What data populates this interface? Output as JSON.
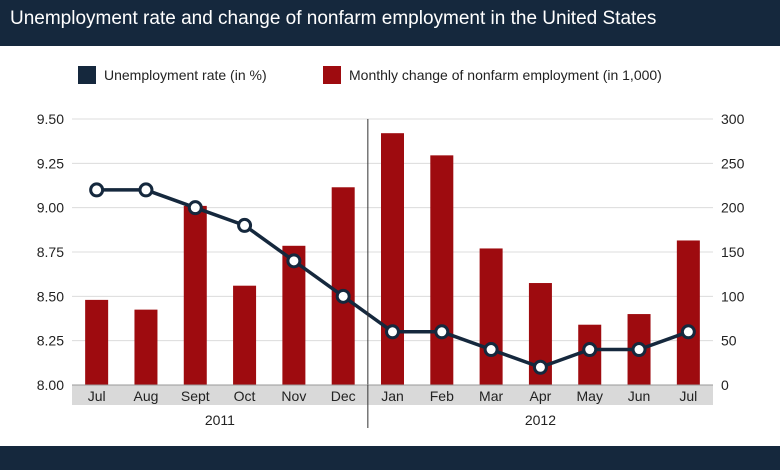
{
  "header": {
    "title": "Unemployment rate and change of nonfarm employment in the United States"
  },
  "legend": {
    "items": [
      {
        "label": "Unemployment rate (in %)",
        "color": "#15283d"
      },
      {
        "label": "Monthly change of nonfarm employment (in 1,000)",
        "color": "#9e0b0f"
      }
    ]
  },
  "chart_data": {
    "type": "bar",
    "categories": [
      "Jul",
      "Aug",
      "Sept",
      "Oct",
      "Nov",
      "Dec",
      "Jan",
      "Feb",
      "Mar",
      "Apr",
      "May",
      "Jun",
      "Jul"
    ],
    "groups": [
      {
        "label": "2011",
        "from": 0,
        "to": 5
      },
      {
        "label": "2012",
        "from": 6,
        "to": 12
      }
    ],
    "series": [
      {
        "name": "Monthly change of nonfarm employment (in 1,000)",
        "type": "bar",
        "axis": "right",
        "color": "#9e0b0f",
        "values": [
          96,
          85,
          202,
          112,
          157,
          223,
          284,
          259,
          154,
          115,
          68,
          80,
          163
        ]
      },
      {
        "name": "Unemployment rate (in %)",
        "type": "line",
        "axis": "left",
        "color": "#15283d",
        "values": [
          9.1,
          9.1,
          9.0,
          8.9,
          8.7,
          8.5,
          8.3,
          8.3,
          8.2,
          8.1,
          8.2,
          8.2,
          8.3
        ]
      }
    ],
    "y_left": {
      "min": 8.0,
      "max": 9.5,
      "ticks": [
        "8.00",
        "8.25",
        "8.50",
        "8.75",
        "9.00",
        "9.25",
        "9.50"
      ]
    },
    "y_right": {
      "min": 0,
      "max": 300,
      "ticks": [
        "0",
        "50",
        "100",
        "150",
        "200",
        "250",
        "300"
      ]
    },
    "grid": true,
    "legend_position": "top"
  }
}
